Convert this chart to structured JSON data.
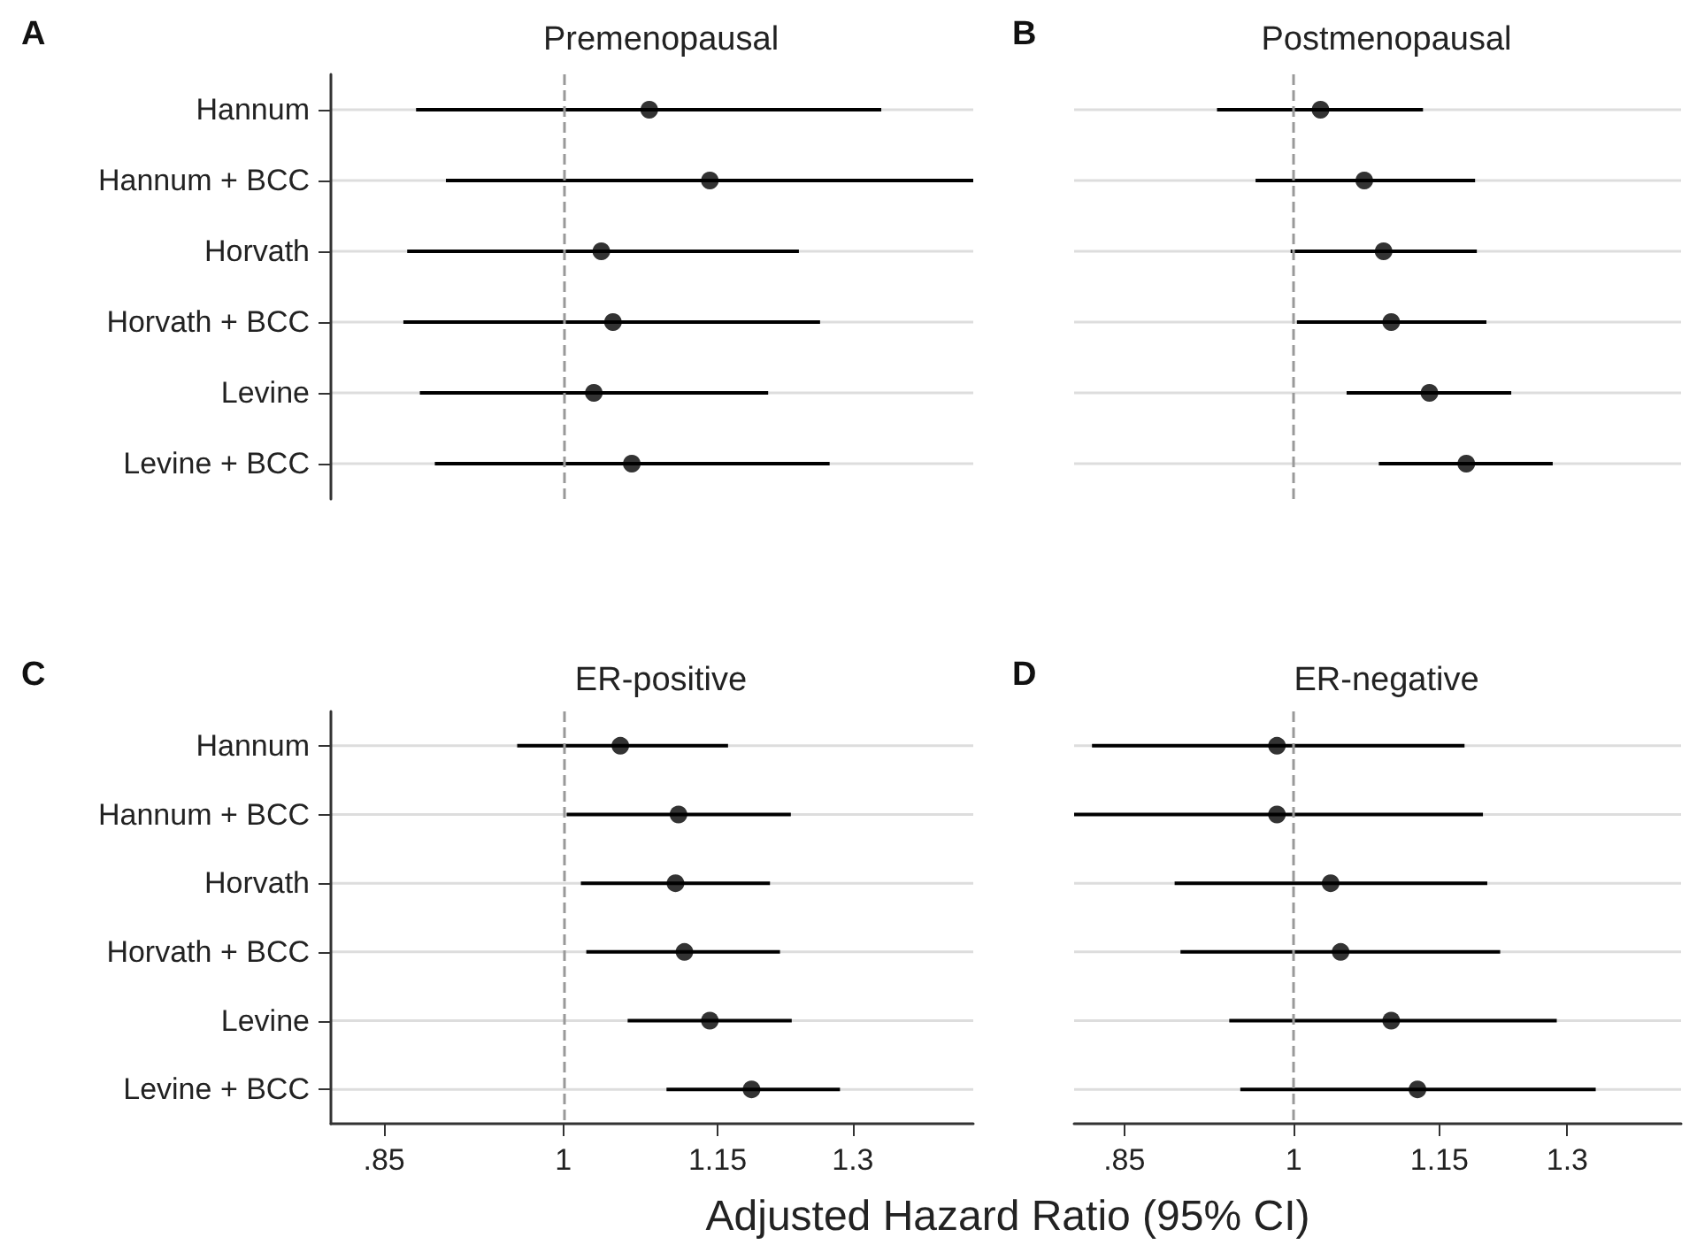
{
  "chart_data": [
    {
      "type": "scatter",
      "orientation": "horizontal",
      "title": "Premenopausal",
      "annotations": [
        "A"
      ],
      "categories": [
        "Hannum",
        "Hannum + BCC",
        "Horvath",
        "Horvath + BCC",
        "Levine",
        "Levine + BCC"
      ],
      "series": [
        {
          "color": "#000000",
          "values": [
            1.081,
            1.142,
            1.035,
            1.046,
            1.028,
            1.064
          ],
          "errors": [
            [
              0.875,
              1.334
            ],
            [
              0.899,
              1.45
            ],
            [
              0.868,
              1.238
            ],
            [
              0.865,
              1.262
            ],
            [
              0.878,
              1.204
            ],
            [
              0.89,
              1.273
            ]
          ]
        }
      ],
      "log": "x",
      "xlim": [
        0.81,
        1.45
      ],
      "ref_lines": [
        {
          "axis": "x",
          "value": 1,
          "color": "#999999",
          "line_style": "dashed"
        }
      ],
      "grid": "y",
      "marker": "circle",
      "tick_labels": "y"
    },
    {
      "type": "scatter",
      "orientation": "horizontal",
      "title": "Postmenopausal",
      "annotations": [
        "B"
      ],
      "categories": [
        null,
        null,
        null,
        null,
        null,
        null
      ],
      "series": [
        {
          "color": "#000000",
          "values": [
            1.026,
            1.07,
            1.09,
            1.098,
            1.139,
            1.18
          ],
          "errors": [
            [
              0.929,
              1.132
            ],
            [
              0.964,
              1.19
            ],
            [
              0.997,
              1.192
            ],
            [
              1.003,
              1.203
            ],
            [
              1.052,
              1.232
            ],
            [
              1.085,
              1.282
            ]
          ]
        }
      ],
      "log": "x",
      "xlim": [
        0.81,
        1.45
      ],
      "ref_lines": [
        {
          "axis": "x",
          "value": 1,
          "color": "#999999",
          "line_style": "dashed"
        }
      ],
      "grid": "y",
      "marker": "circle",
      "tick_labels": false
    },
    {
      "type": "scatter",
      "orientation": "horizontal",
      "title": "ER-positive",
      "annotations": [
        "C"
      ],
      "xlabel": "Adjusted Hazard Ratio (95% CI)",
      "categories": [
        "Hannum",
        "Hannum + BCC",
        "Horvath",
        "Horvath + BCC",
        "Levine",
        "Levine + BCC"
      ],
      "series": [
        {
          "color": "#000000",
          "values": [
            1.053,
            1.11,
            1.107,
            1.116,
            1.142,
            1.186
          ],
          "errors": [
            [
              0.959,
              1.161
            ],
            [
              1.003,
              1.229
            ],
            [
              1.016,
              1.206
            ],
            [
              1.021,
              1.217
            ],
            [
              1.06,
              1.23
            ],
            [
              1.098,
              1.285
            ]
          ]
        }
      ],
      "log": "x",
      "xlim": [
        0.81,
        1.45
      ],
      "xticks": [
        {
          "value": 0.85,
          "label": ".85"
        },
        1,
        1.15,
        1.3
      ],
      "ref_lines": [
        {
          "axis": "x",
          "value": 1,
          "color": "#999999",
          "line_style": "dashed"
        }
      ],
      "grid": "y",
      "marker": "circle"
    },
    {
      "type": "scatter",
      "orientation": "horizontal",
      "title": "ER-negative",
      "annotations": [
        "D"
      ],
      "categories": [
        null,
        null,
        null,
        null,
        null,
        null
      ],
      "series": [
        {
          "color": "#000000",
          "values": [
            0.984,
            0.984,
            1.036,
            1.046,
            1.098,
            1.126
          ],
          "errors": [
            [
              0.824,
              1.178
            ],
            [
              0.81,
              1.199
            ],
            [
              0.892,
              1.204
            ],
            [
              0.897,
              1.219
            ],
            [
              0.94,
              1.287
            ],
            [
              0.95,
              1.336
            ]
          ]
        }
      ],
      "log": "x",
      "xlim": [
        0.81,
        1.45
      ],
      "xticks": [
        {
          "value": 0.85,
          "label": ".85"
        },
        1,
        1.15,
        1.3
      ],
      "ref_lines": [
        {
          "axis": "x",
          "value": 1,
          "color": "#999999",
          "line_style": "dashed"
        }
      ],
      "grid": "y",
      "marker": "circle",
      "tick_labels": "x"
    }
  ]
}
